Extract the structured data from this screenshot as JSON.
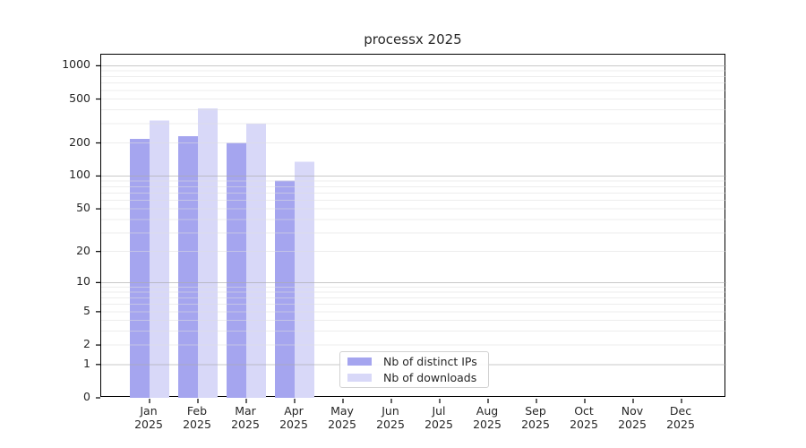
{
  "title": "processx 2025",
  "chart_data": {
    "type": "bar",
    "title": "processx 2025",
    "categories": [
      "Jan",
      "Feb",
      "Mar",
      "Apr",
      "May",
      "Jun",
      "Jul",
      "Aug",
      "Sep",
      "Oct",
      "Nov",
      "Dec"
    ],
    "year_label": "2025",
    "series": [
      {
        "name": "Nb of distinct IPs",
        "color": "#a5a5ef",
        "values": [
          217,
          230,
          200,
          91,
          null,
          null,
          null,
          null,
          null,
          null,
          null,
          null
        ]
      },
      {
        "name": "Nb of downloads",
        "color": "#d8d8f8",
        "values": [
          319,
          410,
          300,
          135,
          null,
          null,
          null,
          null,
          null,
          null,
          null,
          null
        ]
      }
    ],
    "xlabel": "",
    "ylabel": "",
    "y_scale": "log10(v+1)",
    "y_ticks": [
      0,
      1,
      2,
      5,
      10,
      20,
      50,
      100,
      200,
      500,
      1000
    ],
    "ylim": [
      0,
      1260
    ],
    "grid": "horizontal; major lines at 1, 10, 100, 1000; faint minor lines at 2-9 mantissa steps",
    "legend_position": "inside lower center"
  },
  "colors": {
    "bar_distinct_ips": "#a5a5ef",
    "bar_downloads": "#d8d8f8",
    "grid_major": "#aaaaaa",
    "grid_minor": "#dedede",
    "axis": "#000000",
    "text": "#262626"
  }
}
